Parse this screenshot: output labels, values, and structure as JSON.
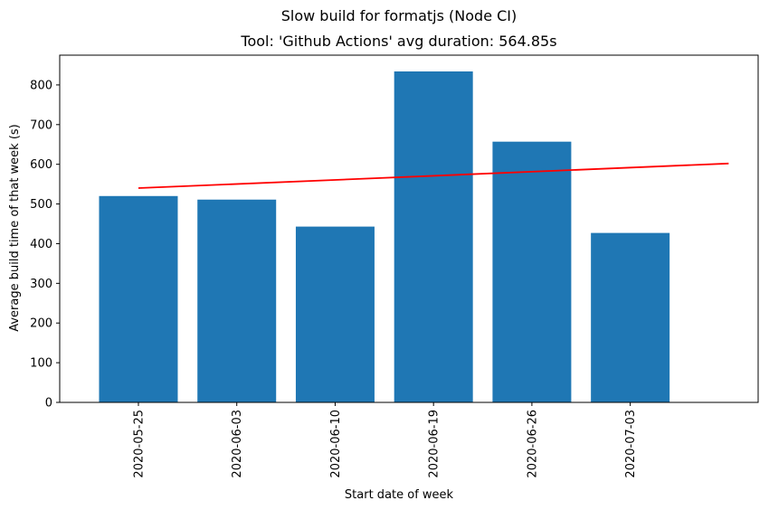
{
  "chart_data": {
    "type": "bar",
    "suptitle": "Slow build for formatjs (Node CI)",
    "title": "Tool: 'Github Actions' avg duration: 564.85s",
    "xlabel": "Start date of week",
    "ylabel": "Average build time of that week (s)",
    "categories": [
      "2020-05-25",
      "2020-06-03",
      "2020-06-10",
      "2020-06-19",
      "2020-06-26",
      "2020-07-03"
    ],
    "values": [
      520,
      511,
      443,
      834,
      657,
      427
    ],
    "ylim": [
      0,
      875
    ],
    "yticks": [
      0,
      100,
      200,
      300,
      400,
      500,
      600,
      700,
      800
    ],
    "trend_line": {
      "start_value": 540,
      "end_value": 602,
      "color": "#ff0000"
    },
    "bar_color": "#1f77b4",
    "grid": false,
    "legend": "none"
  }
}
